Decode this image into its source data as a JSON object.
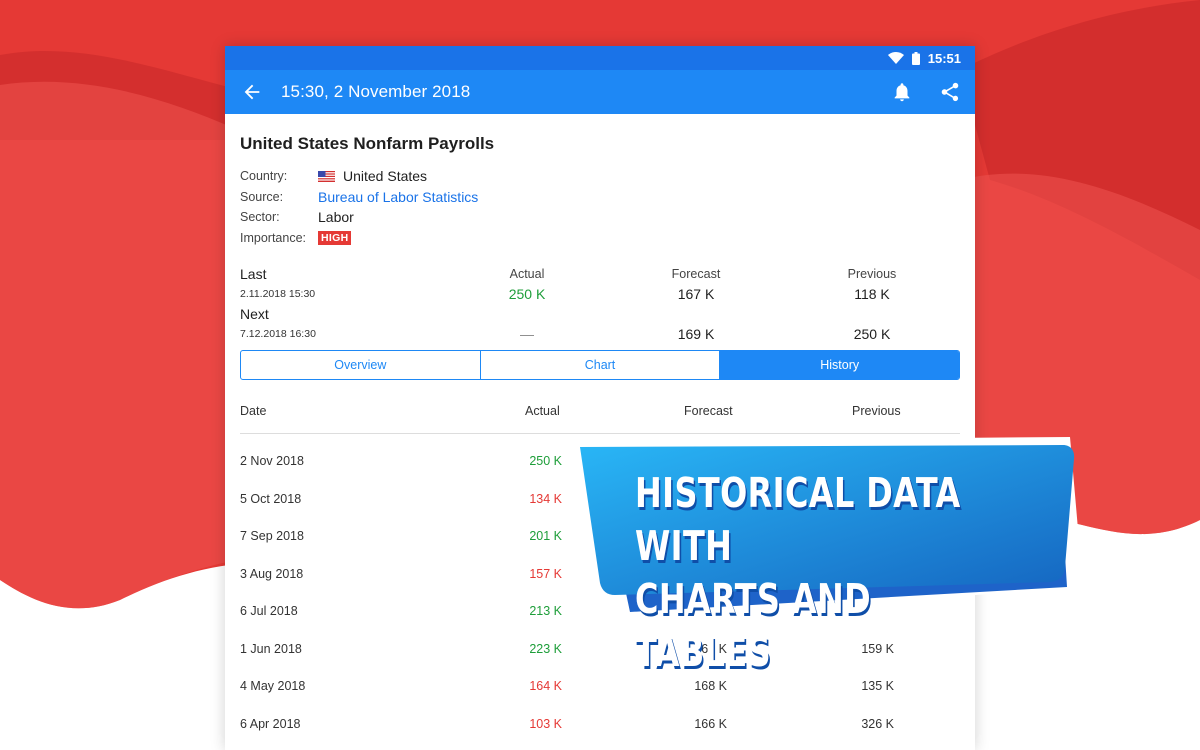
{
  "colors": {
    "accent": "#1e88f5",
    "statusbar": "#1a73e8",
    "background_red": "#e53935",
    "positive": "#1e9e3a",
    "negative": "#e53935"
  },
  "statusbar": {
    "time": "15:51"
  },
  "appbar": {
    "title": "15:30, 2 November 2018",
    "icons": [
      "back-arrow-icon",
      "bell-icon",
      "share-icon"
    ]
  },
  "event": {
    "title": "United States Nonfarm Payrolls",
    "country_label": "Country:",
    "country": "United States",
    "source_label": "Source:",
    "source": "Bureau of Labor Statistics",
    "sector_label": "Sector:",
    "sector": "Labor",
    "importance_label": "Importance:",
    "importance": "HIGH"
  },
  "release": {
    "col_actual": "Actual",
    "col_forecast": "Forecast",
    "col_previous": "Previous",
    "last": {
      "label": "Last",
      "date": "2.11.2018 15:30",
      "actual": "250 K",
      "forecast": "167 K",
      "previous": "118 K"
    },
    "next": {
      "label": "Next",
      "date": "7.12.2018 16:30",
      "actual": "—",
      "forecast": "169 K",
      "previous": "250 K"
    }
  },
  "tabs": [
    {
      "label": "Overview",
      "active": false
    },
    {
      "label": "Chart",
      "active": false
    },
    {
      "label": "History",
      "active": true
    }
  ],
  "history": {
    "headers": {
      "date": "Date",
      "actual": "Actual",
      "forecast": "Forecast",
      "previous": "Previous"
    },
    "rows": [
      {
        "date": "2 Nov 2018",
        "actual": "250 K",
        "trend": "up",
        "forecast": "",
        "previous": ""
      },
      {
        "date": "5 Oct 2018",
        "actual": "134 K",
        "trend": "down",
        "forecast": "",
        "previous": ""
      },
      {
        "date": "7 Sep 2018",
        "actual": "201 K",
        "trend": "up",
        "forecast": "",
        "previous": ""
      },
      {
        "date": "3 Aug 2018",
        "actual": "157 K",
        "trend": "down",
        "forecast": "",
        "previous": ""
      },
      {
        "date": "6 Jul 2018",
        "actual": "213 K",
        "trend": "up",
        "forecast": "",
        "previous": ""
      },
      {
        "date": "1 Jun 2018",
        "actual": "223 K",
        "trend": "up",
        "forecast": "166 K",
        "previous": "159 K"
      },
      {
        "date": "4 May 2018",
        "actual": "164 K",
        "trend": "down",
        "forecast": "168 K",
        "previous": "135 K"
      },
      {
        "date": "6 Apr 2018",
        "actual": "103 K",
        "trend": "down",
        "forecast": "166 K",
        "previous": "326 K"
      }
    ]
  },
  "banner": {
    "line1": "HISTORICAL DATA WITH",
    "line2": "CHARTS AND TABLES"
  }
}
